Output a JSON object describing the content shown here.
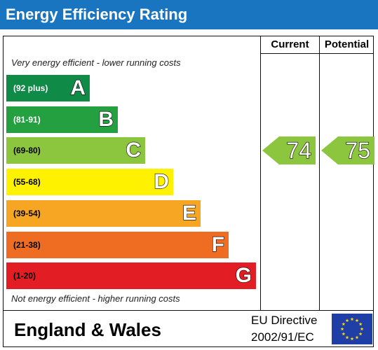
{
  "title": "Energy Efficiency Rating",
  "columns": {
    "current": "Current",
    "potential": "Potential"
  },
  "captions": {
    "top": "Very energy efficient - lower running costs",
    "bottom": "Not energy efficient - higher running costs"
  },
  "footer": {
    "region": "England & Wales",
    "directive_line1": "EU Directive",
    "directive_line2": "2002/91/EC",
    "flag_icon": "eu-flag-icon"
  },
  "chart_data": {
    "type": "bar",
    "title": "Energy Efficiency Rating",
    "bands": [
      {
        "range": "(92 plus)",
        "letter": "A",
        "min": 92,
        "max": 100,
        "color": "#0f8a47",
        "range_color": "#ffffff"
      },
      {
        "range": "(81-91)",
        "letter": "B",
        "min": 81,
        "max": 91,
        "color": "#24a041",
        "range_color": "#ffffff"
      },
      {
        "range": "(69-80)",
        "letter": "C",
        "min": 69,
        "max": 80,
        "color": "#8cc63f",
        "range_color": "#000000"
      },
      {
        "range": "(55-68)",
        "letter": "D",
        "min": 55,
        "max": 68,
        "color": "#fff200",
        "range_color": "#000000"
      },
      {
        "range": "(39-54)",
        "letter": "E",
        "min": 39,
        "max": 54,
        "color": "#f6a623",
        "range_color": "#000000"
      },
      {
        "range": "(21-38)",
        "letter": "F",
        "min": 21,
        "max": 38,
        "color": "#ef6c23",
        "range_color": "#000000"
      },
      {
        "range": "(1-20)",
        "letter": "G",
        "min": 1,
        "max": 20,
        "color": "#e31d24",
        "range_color": "#000000"
      }
    ],
    "ratings": [
      {
        "name": "Current",
        "value": 74,
        "band": "C",
        "color": "#8cc63f"
      },
      {
        "name": "Potential",
        "value": 75,
        "band": "C",
        "color": "#8cc63f"
      }
    ]
  }
}
